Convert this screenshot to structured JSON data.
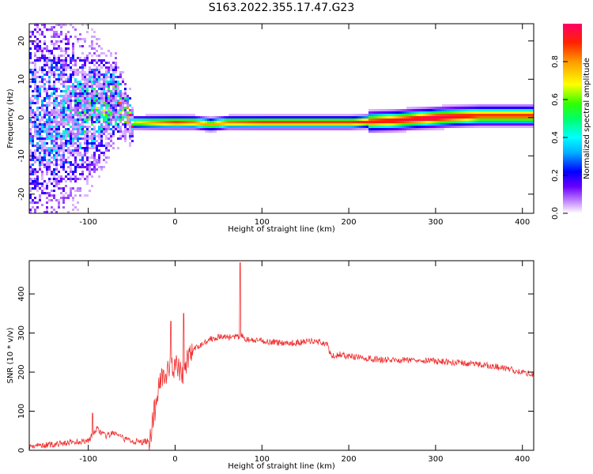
{
  "figure_title": "S163.2022.355.17.47.G23",
  "chart_data": [
    {
      "type": "heatmap",
      "title": "",
      "xlabel": "Height of straight line (km)",
      "ylabel": "Frequency (Hz)",
      "xlim": [
        -168,
        413
      ],
      "ylim": [
        -25,
        24.5
      ],
      "xticks": [
        -100,
        0,
        100,
        200,
        300,
        400
      ],
      "yticks": [
        -20,
        -10,
        0,
        10,
        20
      ],
      "grid": false,
      "description_of_ridge": {
        "x": [
          -165,
          -140,
          -120,
          -100,
          -80,
          -70,
          -60,
          -50,
          -30,
          0,
          20,
          40,
          60,
          100,
          150,
          200,
          250,
          300,
          350,
          413
        ],
        "freq": [
          0,
          0,
          1,
          2,
          3.5,
          5,
          2,
          -1,
          -1,
          -1,
          -1,
          -1.5,
          -1,
          -1,
          -1,
          -1,
          -0.5,
          0.3,
          0.8,
          0.8
        ],
        "amplitude": [
          0.25,
          0.3,
          0.35,
          0.4,
          0.45,
          0.55,
          0.5,
          0.7,
          0.8,
          0.9,
          0.85,
          0.8,
          0.85,
          0.9,
          0.9,
          0.9,
          0.95,
          1.0,
          0.9,
          0.9
        ]
      },
      "colorbar": {
        "label": "Normalized spectral amplitude",
        "range": [
          0,
          1
        ],
        "ticks": [
          0.0,
          0.2,
          0.4,
          0.6,
          0.8
        ],
        "colors": [
          "#ffffff",
          "#c68cff",
          "#6a00ff",
          "#0000ff",
          "#00b0ff",
          "#00ffff",
          "#00ff66",
          "#33ff00",
          "#ffff00",
          "#ff9900",
          "#ff2200",
          "#ff0066"
        ]
      }
    },
    {
      "type": "line",
      "title": "",
      "xlabel": "Height of straight line (km)",
      "ylabel": "SNR (10 * v/v)",
      "xlim": [
        -168,
        413
      ],
      "ylim": [
        0,
        485
      ],
      "xticks": [
        -100,
        0,
        100,
        200,
        300,
        400
      ],
      "yticks": [
        0,
        100,
        200,
        300,
        400
      ],
      "grid": false,
      "color": "#f03030",
      "series": [
        {
          "x": [
            -168,
            -140,
            -120,
            -100,
            -90,
            -80,
            -70,
            -60,
            -50,
            -40,
            -30,
            -25,
            -20,
            -15,
            -10,
            -5,
            0,
            5,
            10,
            15,
            20,
            30,
            40,
            50,
            60,
            70,
            74,
            76,
            80,
            90,
            100,
            120,
            140,
            160,
            170,
            175,
            180,
            190,
            200,
            220,
            250,
            280,
            300,
            320,
            350,
            380,
            400,
            413
          ],
          "values": [
            10,
            15,
            20,
            25,
            55,
            35,
            45,
            30,
            25,
            20,
            25,
            80,
            150,
            200,
            190,
            210,
            220,
            200,
            190,
            240,
            255,
            270,
            285,
            290,
            290,
            290,
            290,
            295,
            285,
            280,
            280,
            275,
            275,
            280,
            275,
            270,
            240,
            245,
            240,
            235,
            230,
            232,
            228,
            225,
            220,
            210,
            200,
            195
          ]
        }
      ],
      "annotations": {
        "spikes": [
          {
            "x": -5,
            "y": 330
          },
          {
            "x": 10,
            "y": 350
          },
          {
            "x": 75,
            "y": 480
          },
          {
            "x": -95,
            "y": 95
          }
        ]
      }
    }
  ]
}
